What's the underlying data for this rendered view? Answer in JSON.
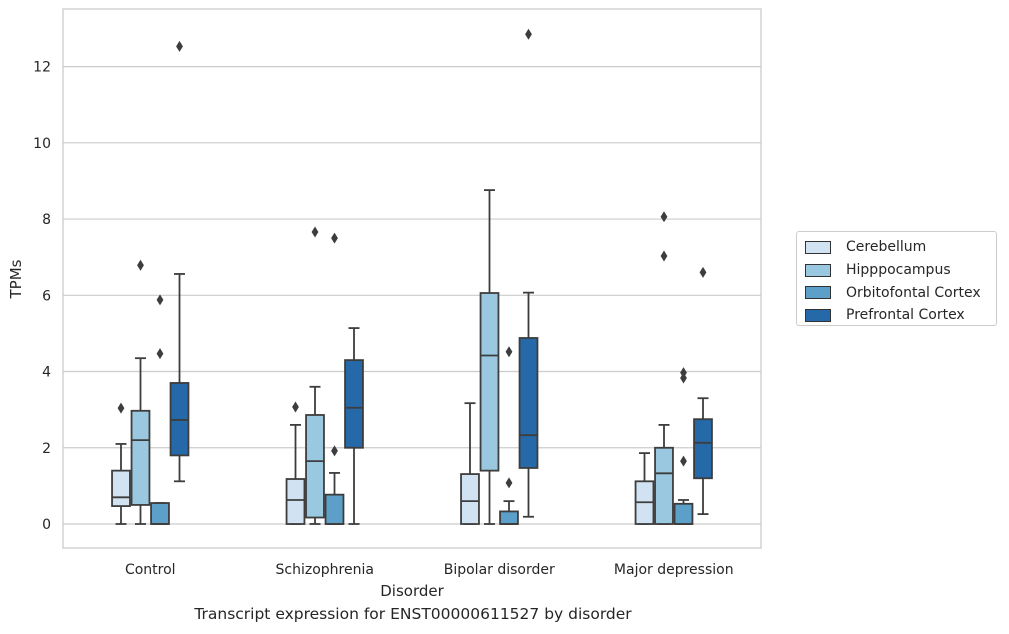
{
  "chart_data": {
    "type": "box",
    "xlabel": "Disorder",
    "ylabel": "TPMs",
    "ylim": [
      -0.62,
      13.5
    ],
    "yticks": [
      0,
      2,
      4,
      6,
      8,
      10,
      12
    ],
    "grid": "horizontal",
    "legend_position": "right",
    "categories": [
      "Control",
      "Schizophrenia",
      "Bipolar disorder",
      "Major depression"
    ],
    "series": [
      {
        "name": "Cerebellum",
        "color": "#d1e3f3",
        "boxes": [
          {
            "min": 0.0,
            "q1": 0.47,
            "median": 0.7,
            "q3": 1.4,
            "max": 2.1,
            "outliers": [
              3.04
            ]
          },
          {
            "min": 0.0,
            "q1": 0.0,
            "median": 0.63,
            "q3": 1.18,
            "max": 2.6,
            "outliers": [
              3.07
            ]
          },
          {
            "min": 0.0,
            "q1": 0.0,
            "median": 0.6,
            "q3": 1.31,
            "max": 3.17,
            "outliers": []
          },
          {
            "min": 0.0,
            "q1": 0.0,
            "median": 0.57,
            "q3": 1.12,
            "max": 1.86,
            "outliers": []
          }
        ]
      },
      {
        "name": "Hipppocampus",
        "color": "#9ac8e0",
        "boxes": [
          {
            "min": 0.0,
            "q1": 0.5,
            "median": 2.2,
            "q3": 2.97,
            "max": 4.35,
            "outliers": [
              6.79
            ]
          },
          {
            "min": 0.0,
            "q1": 0.17,
            "median": 1.65,
            "q3": 2.86,
            "max": 3.6,
            "outliers": [
              7.66
            ]
          },
          {
            "min": 0.0,
            "q1": 1.4,
            "median": 4.42,
            "q3": 6.06,
            "max": 8.76,
            "outliers": []
          },
          {
            "min": 0.0,
            "q1": 0.0,
            "median": 1.33,
            "q3": 2.0,
            "max": 2.6,
            "outliers": [
              7.03,
              8.06
            ]
          }
        ]
      },
      {
        "name": "Orbitofontal Cortex",
        "color": "#5ca0c9",
        "boxes": [
          {
            "min": 0.0,
            "q1": 0.0,
            "median": 0.0,
            "q3": 0.55,
            "max": 0.55,
            "outliers": [
              4.47,
              5.88
            ]
          },
          {
            "min": 0.0,
            "q1": 0.0,
            "median": 0.0,
            "q3": 0.77,
            "max": 1.34,
            "outliers": [
              1.92,
              7.5
            ]
          },
          {
            "min": 0.0,
            "q1": 0.0,
            "median": 0.0,
            "q3": 0.33,
            "max": 0.6,
            "outliers": [
              1.08,
              4.52
            ]
          },
          {
            "min": 0.0,
            "q1": 0.0,
            "median": 0.0,
            "q3": 0.53,
            "max": 0.63,
            "outliers": [
              1.65,
              3.83,
              3.97
            ]
          }
        ]
      },
      {
        "name": "Prefrontal Cortex",
        "color": "#2669a8",
        "boxes": [
          {
            "min": 1.12,
            "q1": 1.8,
            "median": 2.73,
            "q3": 3.7,
            "max": 6.56,
            "outliers": [
              12.53
            ]
          },
          {
            "min": 0.0,
            "q1": 2.0,
            "median": 3.05,
            "q3": 4.3,
            "max": 5.14,
            "outliers": []
          },
          {
            "min": 0.19,
            "q1": 1.47,
            "median": 2.33,
            "q3": 4.88,
            "max": 6.07,
            "outliers": [
              12.85
            ]
          },
          {
            "min": 0.26,
            "q1": 1.2,
            "median": 2.13,
            "q3": 2.75,
            "max": 3.3,
            "outliers": [
              6.6
            ]
          }
        ]
      }
    ]
  },
  "caption": "Transcript expression for ENST00000611527 by disorder"
}
